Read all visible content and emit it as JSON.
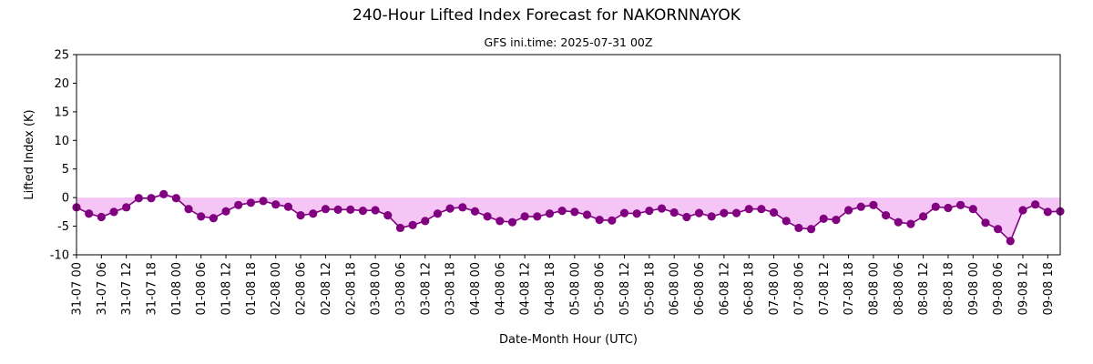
{
  "chart_data": {
    "type": "line",
    "title": "240-Hour Lifted Index Forecast for NAKORNNAYOK",
    "subtitle": "GFS ini.time: 2025-07-31 00Z",
    "xlabel": "Date-Month Hour (UTC)",
    "ylabel": "Lifted Index (K)",
    "ylim": [
      -10,
      25
    ],
    "yticks": [
      -10,
      -5,
      0,
      5,
      10,
      15,
      20,
      25
    ],
    "x_step_hours": 3,
    "x_tick_every_hours": 6,
    "x_tick_labels": [
      "31-07 00",
      "31-07 06",
      "31-07 12",
      "31-07 18",
      "01-08 00",
      "01-08 06",
      "01-08 12",
      "01-08 18",
      "02-08 00",
      "02-08 06",
      "02-08 12",
      "02-08 18",
      "03-08 00",
      "03-08 06",
      "03-08 12",
      "03-08 18",
      "04-08 00",
      "04-08 06",
      "04-08 12",
      "04-08 18",
      "05-08 00",
      "05-08 06",
      "05-08 12",
      "05-08 18",
      "06-08 00",
      "06-08 06",
      "06-08 12",
      "06-08 18",
      "07-08 00",
      "07-08 06",
      "07-08 12",
      "07-08 18",
      "08-08 00",
      "08-08 06",
      "08-08 12",
      "08-08 18",
      "09-08 00",
      "09-08 06",
      "09-08 12",
      "09-08 18"
    ],
    "series": [
      {
        "values": [
          -1.7,
          -2.8,
          -3.4,
          -2.5,
          -1.7,
          -0.1,
          -0.1,
          0.6,
          -0.1,
          -2.0,
          -3.3,
          -3.6,
          -2.4,
          -1.3,
          -0.9,
          -0.6,
          -1.2,
          -1.6,
          -3.1,
          -2.8,
          -2.0,
          -2.1,
          -2.1,
          -2.3,
          -2.2,
          -3.1,
          -5.3,
          -4.8,
          -4.1,
          -2.8,
          -1.9,
          -1.7,
          -2.4,
          -3.3,
          -4.1,
          -4.3,
          -3.3,
          -3.3,
          -2.8,
          -2.3,
          -2.5,
          -3.0,
          -3.9,
          -4.0,
          -2.7,
          -2.8,
          -2.3,
          -1.9,
          -2.6,
          -3.4,
          -2.7,
          -3.3,
          -2.7,
          -2.7,
          -2.0,
          -2.0,
          -2.6,
          -4.1,
          -5.3,
          -5.5,
          -3.7,
          -3.9,
          -2.2,
          -1.6,
          -1.3,
          -3.1,
          -4.3,
          -4.6,
          -3.3,
          -1.6,
          -1.8,
          -1.3,
          -2.0,
          -4.4,
          -5.5,
          -7.6,
          -2.2,
          -1.2,
          -2.5,
          -2.4
        ]
      }
    ],
    "colors": {
      "line": "#800080",
      "fill": "#f5c6f5",
      "axis": "#000000"
    }
  }
}
